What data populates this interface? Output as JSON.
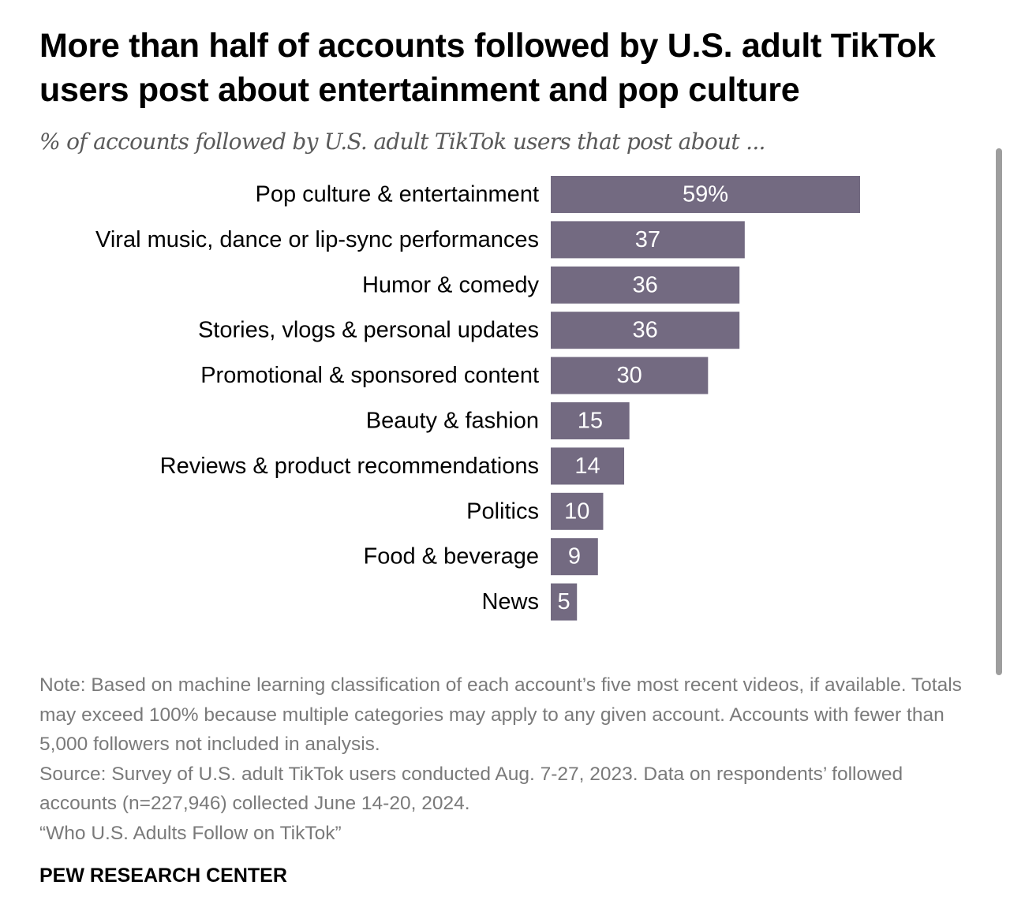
{
  "title": "More than half of accounts followed by U.S. adult TikTok users post about entertainment and pop culture",
  "subtitle": "% of accounts followed by U.S. adult TikTok users that post about ...",
  "chart_data": {
    "type": "bar",
    "orientation": "horizontal",
    "title": "More than half of accounts followed by U.S. adult TikTok users post about entertainment and pop culture",
    "subtitle": "% of accounts followed by U.S. adult TikTok users that post about ...",
    "categories": [
      "Pop culture & entertainment",
      "Viral music, dance or lip-sync performances",
      "Humor & comedy",
      "Stories, vlogs & personal updates",
      "Promotional & sponsored content",
      "Beauty & fashion",
      "Reviews & product recommendations",
      "Politics",
      "Food & beverage",
      "News"
    ],
    "values": [
      59,
      37,
      36,
      36,
      30,
      15,
      14,
      10,
      9,
      5
    ],
    "data_labels": [
      "59%",
      "37",
      "36",
      "36",
      "30",
      "15",
      "14",
      "10",
      "9",
      "5"
    ],
    "bar_color": "#736a81",
    "label_color": "#ffffff",
    "xlabel": "",
    "ylabel": "",
    "xlim": [
      0,
      100
    ],
    "grid": false,
    "legend": "none"
  },
  "notes": {
    "note": "Note: Based on machine learning classification of each account’s five most recent videos, if available. Totals may exceed 100% because multiple categories may apply to any given account. Accounts with fewer than 5,000 followers not included in analysis.",
    "source": "Source: Survey of U.S. adult TikTok users conducted Aug. 7-27, 2023. Data on respondents’ followed accounts (n=227,946) collected June 14-20, 2024.",
    "report": "“Who U.S. Adults Follow on TikTok”"
  },
  "brand": "PEW RESEARCH CENTER",
  "colors": {
    "bar": "#736a81",
    "notes_text": "#7a7a7a",
    "subtitle_text": "#5a5a5a",
    "scrollbar": "#9e9e9e"
  }
}
